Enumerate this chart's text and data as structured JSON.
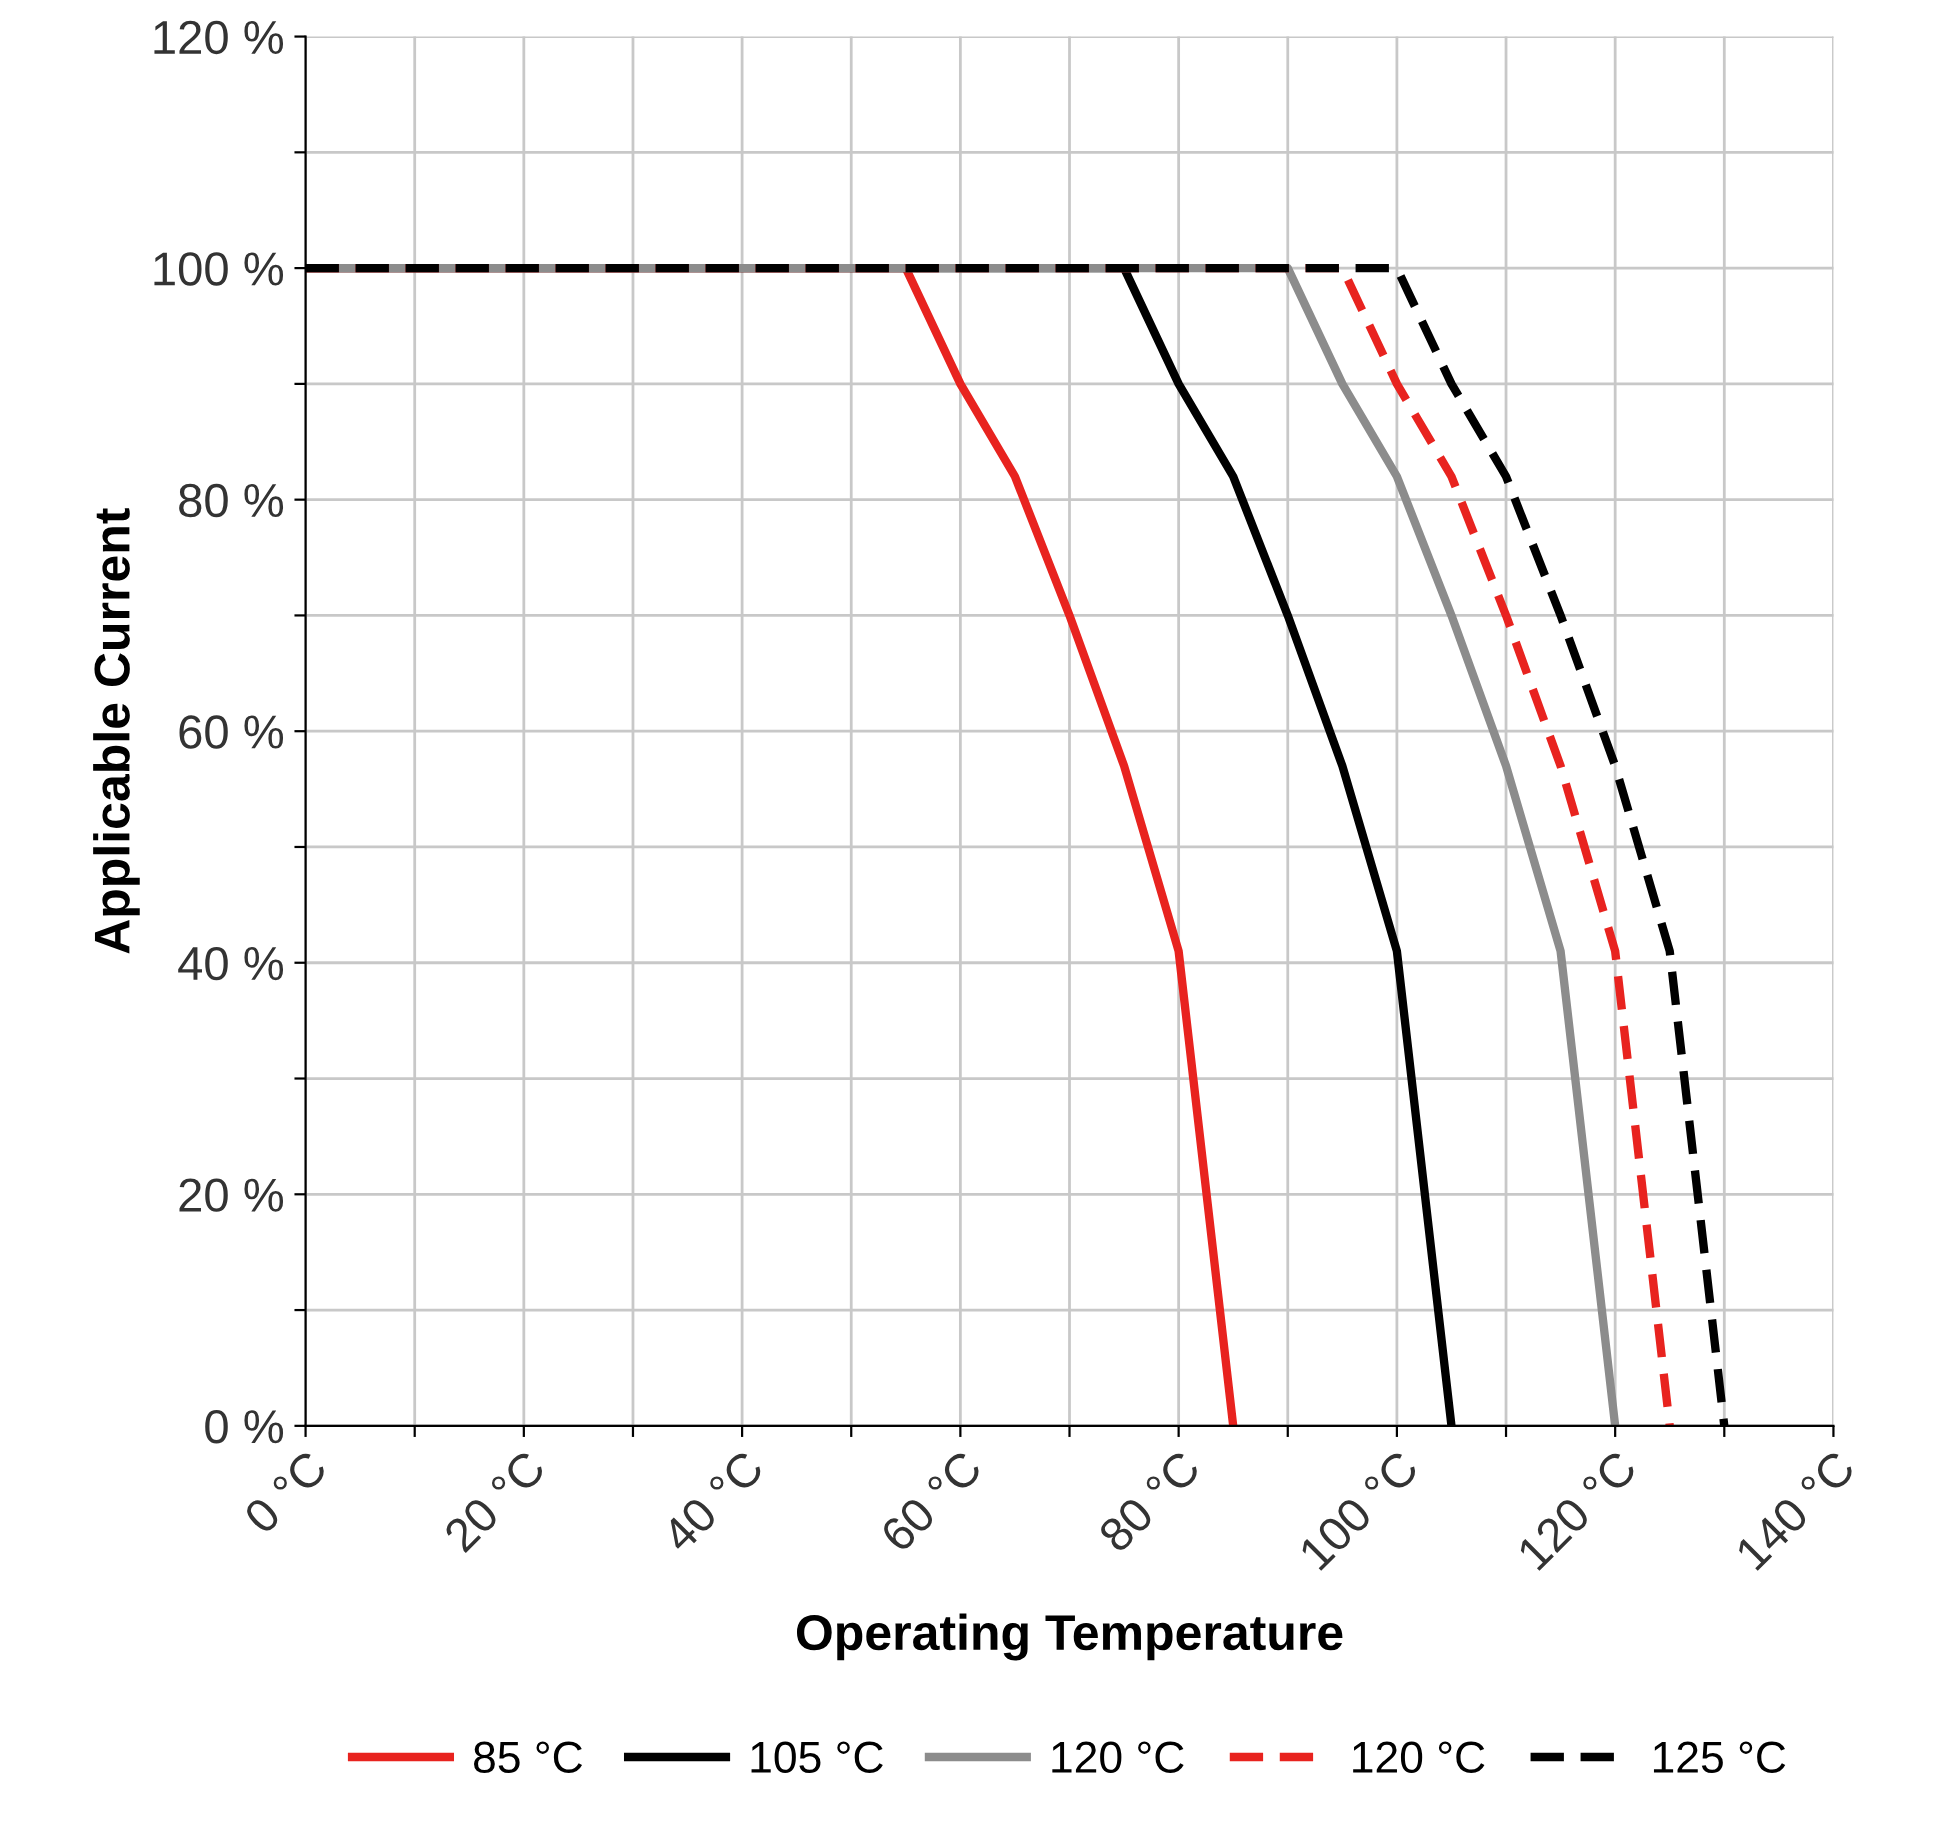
{
  "chart_data": {
    "type": "line",
    "xlabel": "Operating Temperature",
    "ylabel": "Applicable Current",
    "xlim": [
      0,
      140
    ],
    "ylim": [
      0,
      120
    ],
    "xticks": [
      {
        "value": 0,
        "label": "0 °C"
      },
      {
        "value": 10,
        "label": null
      },
      {
        "value": 20,
        "label": "20 °C"
      },
      {
        "value": 30,
        "label": null
      },
      {
        "value": 40,
        "label": "40 °C"
      },
      {
        "value": 50,
        "label": null
      },
      {
        "value": 60,
        "label": "60 °C"
      },
      {
        "value": 70,
        "label": null
      },
      {
        "value": 80,
        "label": "80 °C"
      },
      {
        "value": 90,
        "label": null
      },
      {
        "value": 100,
        "label": "100 °C"
      },
      {
        "value": 110,
        "label": null
      },
      {
        "value": 120,
        "label": "120 °C"
      },
      {
        "value": 130,
        "label": null
      },
      {
        "value": 140,
        "label": "140 °C"
      }
    ],
    "yticks": [
      {
        "value": 0,
        "label": "0 %"
      },
      {
        "value": 10,
        "label": null
      },
      {
        "value": 20,
        "label": "20 %"
      },
      {
        "value": 30,
        "label": null
      },
      {
        "value": 40,
        "label": "40 %"
      },
      {
        "value": 50,
        "label": null
      },
      {
        "value": 60,
        "label": "60 %"
      },
      {
        "value": 70,
        "label": null
      },
      {
        "value": 80,
        "label": "80 %"
      },
      {
        "value": 90,
        "label": null
      },
      {
        "value": 100,
        "label": "100 %"
      },
      {
        "value": 110,
        "label": null
      },
      {
        "value": 120,
        "label": "120 %"
      }
    ],
    "grid": true,
    "legend": "bottom",
    "marker": "none",
    "series": [
      {
        "name": "85 °C",
        "color": "#e8231f",
        "line_style": "solid",
        "x": [
          0,
          55,
          60,
          65,
          70,
          75,
          80,
          85
        ],
        "values": [
          100,
          100,
          90,
          82,
          70,
          57,
          41,
          0
        ]
      },
      {
        "name": "105 °C",
        "color": "#000000",
        "line_style": "solid",
        "x": [
          0,
          75,
          80,
          85,
          90,
          95,
          100,
          105
        ],
        "values": [
          100,
          100,
          90,
          82,
          70,
          57,
          41,
          0
        ]
      },
      {
        "name": "120 °C",
        "color": "#8c8c8c",
        "line_style": "solid",
        "x": [
          0,
          90,
          95,
          100,
          105,
          110,
          115,
          120
        ],
        "values": [
          100,
          100,
          90,
          82,
          70,
          57,
          41,
          0
        ]
      },
      {
        "name": "120 °C",
        "color": "#e8231f",
        "line_style": "dashed",
        "x": [
          0,
          95,
          100,
          105,
          110,
          115,
          120,
          125
        ],
        "values": [
          100,
          100,
          90,
          82,
          70,
          57,
          41,
          0
        ]
      },
      {
        "name": "125 °C",
        "color": "#000000",
        "line_style": "dashed",
        "x": [
          0,
          100,
          105,
          110,
          115,
          120,
          125,
          130
        ],
        "values": [
          100,
          100,
          90,
          82,
          70,
          57,
          41,
          0
        ]
      }
    ]
  }
}
